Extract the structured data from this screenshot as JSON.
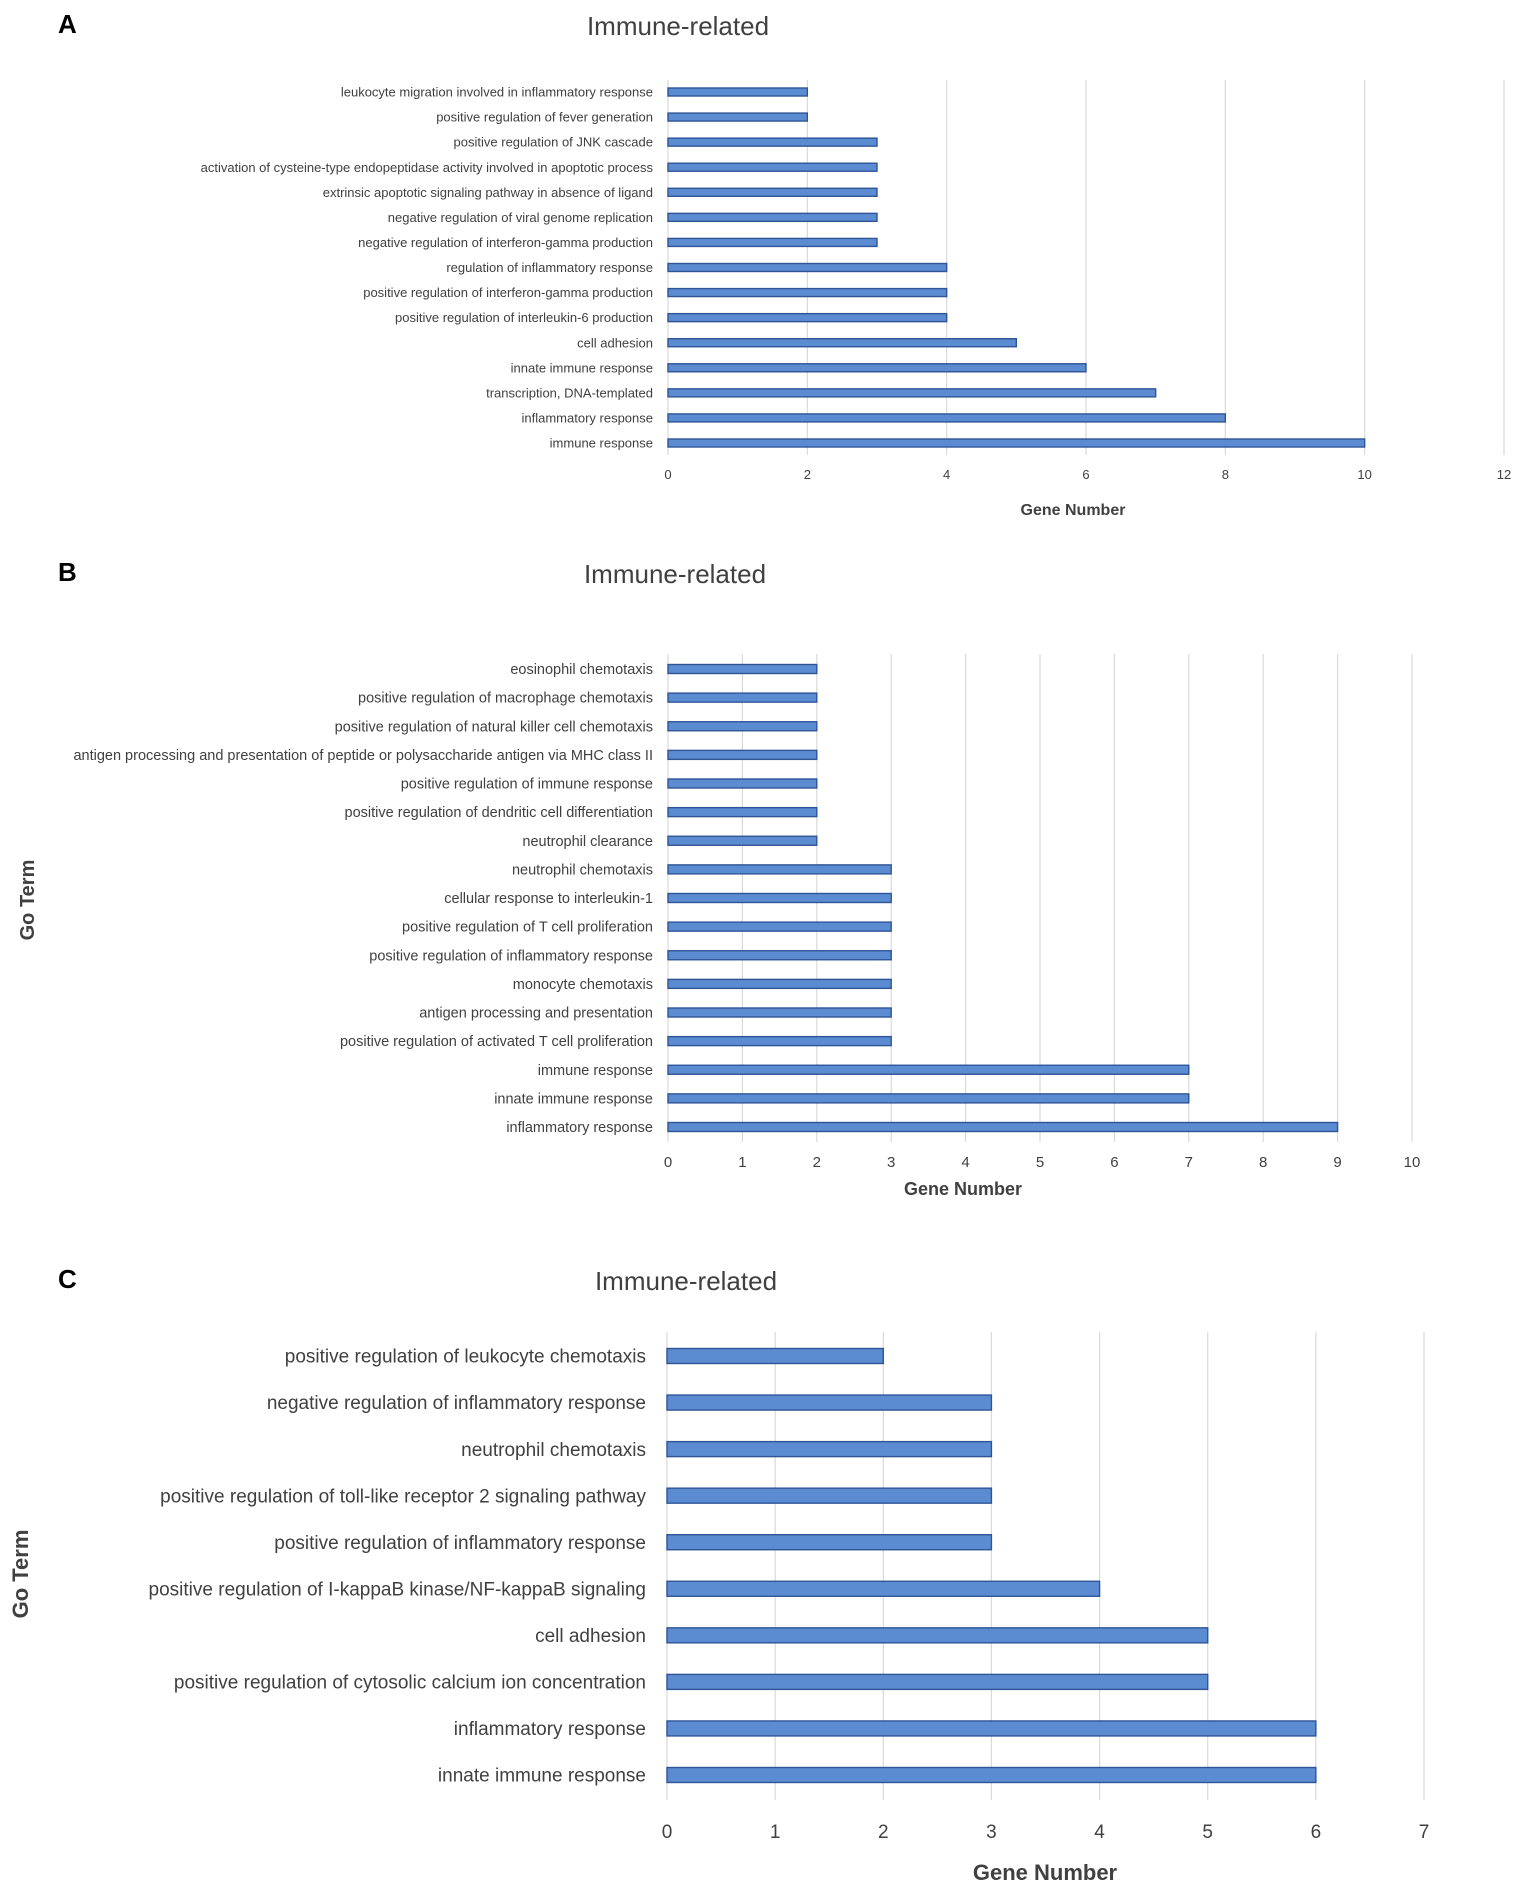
{
  "colors": {
    "bar": "#5b8bd0",
    "bar_edge": "#2f5597",
    "grid": "#d9d9d9",
    "text": "#404040"
  },
  "chart_data": [
    {
      "panel_letter": "A",
      "type": "bar",
      "orientation": "horizontal",
      "title": "Immune-related",
      "xlabel": "Gene Number",
      "ylabel": "",
      "xlim": [
        0,
        12
      ],
      "xticks": [
        0,
        2,
        4,
        6,
        8,
        10,
        12
      ],
      "grid": true,
      "categories": [
        "leukocyte migration involved in inflammatory response",
        "positive regulation of fever generation",
        "positive regulation of JNK cascade",
        "activation of cysteine-type endopeptidase activity involved in apoptotic process",
        "extrinsic apoptotic signaling pathway in absence of ligand",
        "negative regulation of viral genome replication",
        "negative regulation of interferon-gamma production",
        "regulation of inflammatory response",
        "positive regulation of interferon-gamma production",
        "positive regulation of interleukin-6 production",
        "cell adhesion",
        "innate immune response",
        "transcription, DNA-templated",
        "inflammatory response",
        "immune response"
      ],
      "values": [
        2,
        2,
        3,
        3,
        3,
        3,
        3,
        4,
        4,
        4,
        5,
        6,
        7,
        8,
        10
      ]
    },
    {
      "panel_letter": "B",
      "type": "bar",
      "orientation": "horizontal",
      "title": "Immune-related",
      "xlabel": "Gene Number",
      "ylabel": "Go Term",
      "xlim": [
        0,
        10
      ],
      "xticks": [
        0,
        1,
        2,
        3,
        4,
        5,
        6,
        7,
        8,
        9,
        10
      ],
      "grid": true,
      "categories": [
        "eosinophil chemotaxis",
        "positive regulation of macrophage chemotaxis",
        "positive regulation of natural killer cell chemotaxis",
        "antigen processing and presentation of peptide or polysaccharide antigen via MHC class II",
        "positive regulation of immune response",
        "positive regulation of dendritic cell differentiation",
        "neutrophil clearance",
        "neutrophil chemotaxis",
        "cellular response to interleukin-1",
        "positive regulation of T cell proliferation",
        "positive regulation of inflammatory response",
        "monocyte chemotaxis",
        "antigen processing and presentation",
        "positive regulation of activated T cell proliferation",
        "immune response",
        "innate immune response",
        "inflammatory response"
      ],
      "values": [
        2,
        2,
        2,
        2,
        2,
        2,
        2,
        3,
        3,
        3,
        3,
        3,
        3,
        3,
        7,
        7,
        9
      ]
    },
    {
      "panel_letter": "C",
      "type": "bar",
      "orientation": "horizontal",
      "title": "Immune-related",
      "xlabel": "Gene Number",
      "ylabel": "Go Term",
      "xlim": [
        0,
        7
      ],
      "xticks": [
        0,
        1,
        2,
        3,
        4,
        5,
        6,
        7
      ],
      "grid": true,
      "categories": [
        "positive regulation of leukocyte chemotaxis",
        "negative regulation of inflammatory response",
        "neutrophil chemotaxis",
        "positive regulation of toll-like receptor 2 signaling pathway",
        "positive regulation of inflammatory response",
        "positive regulation of I-kappaB kinase/NF-kappaB signaling",
        "cell adhesion",
        "positive regulation of cytosolic calcium ion concentration",
        "inflammatory response",
        "innate immune response"
      ],
      "values": [
        2,
        3,
        3,
        3,
        3,
        4,
        5,
        5,
        6,
        6
      ]
    }
  ]
}
